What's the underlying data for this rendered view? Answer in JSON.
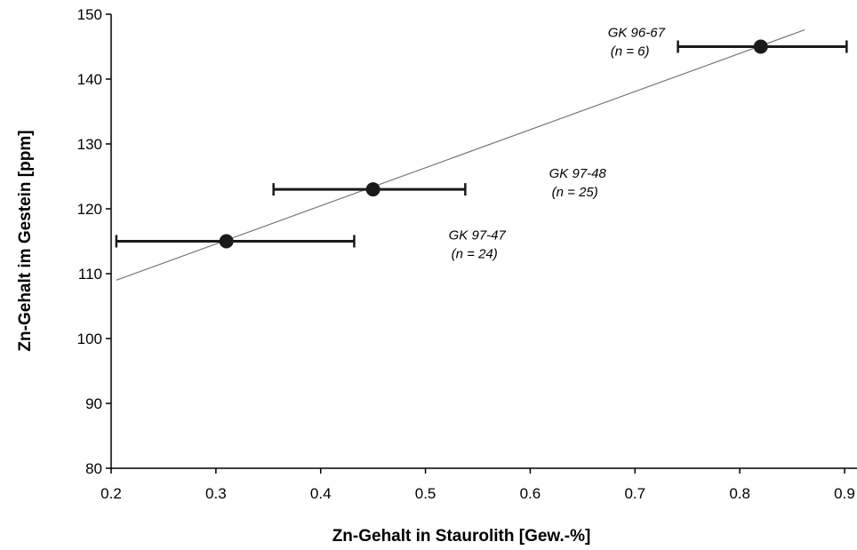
{
  "chart_data": {
    "type": "scatter",
    "xlabel": "Zn-Gehalt in Staurolith [Gew.-%]",
    "ylabel": "Zn-Gehalt im Gestein [ppm]",
    "xlim": [
      0.2,
      0.9
    ],
    "ylim": [
      80,
      150
    ],
    "x_ticks": [
      0.2,
      0.3,
      0.4,
      0.5,
      0.6,
      0.7,
      0.8,
      0.9
    ],
    "x_tick_labels": [
      "0.2",
      "0.3",
      "0.4",
      "0.5",
      "0.6",
      "0.7",
      "0.8",
      "0.9"
    ],
    "y_ticks": [
      80,
      90,
      100,
      110,
      120,
      130,
      140,
      150
    ],
    "y_tick_labels": [
      "80",
      "90",
      "100",
      "110",
      "120",
      "130",
      "140",
      "150"
    ],
    "grid": false,
    "points": [
      {
        "x": 0.31,
        "y": 115,
        "x_err_low": 0.205,
        "x_err_high": 0.432,
        "label": "GK 97-47",
        "n_label": "(n = 24)"
      },
      {
        "x": 0.45,
        "y": 123,
        "x_err_low": 0.355,
        "x_err_high": 0.538,
        "label": "GK 97-48",
        "n_label": "(n = 25)"
      },
      {
        "x": 0.82,
        "y": 145,
        "x_err_low": 0.741,
        "x_err_high": 0.902,
        "label": "GK 96-67",
        "n_label": "(n = 6)"
      }
    ],
    "trendline": {
      "x": [
        0.205,
        0.862
      ],
      "y": [
        109.0,
        147.6
      ]
    },
    "colors": {
      "marker": "#1a1a1a",
      "errorbar": "#1a1a1a",
      "trendline": "#777777",
      "axis": "#000000"
    }
  }
}
